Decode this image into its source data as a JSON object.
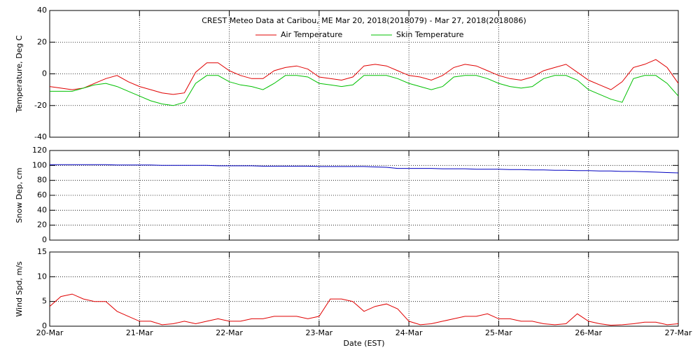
{
  "chart_data": [
    {
      "type": "line",
      "title": "CREST Meteo Data at Caribou, ME   Mar 20, 2018(2018079) - Mar 27, 2018(2018086)",
      "y_label": "Temperature, Deg C",
      "x": [
        0,
        0.125,
        0.25,
        0.375,
        0.5,
        0.625,
        0.75,
        0.875,
        1,
        1.125,
        1.25,
        1.375,
        1.5,
        1.625,
        1.75,
        1.875,
        2,
        2.125,
        2.25,
        2.375,
        2.5,
        2.625,
        2.75,
        2.875,
        3,
        3.125,
        3.25,
        3.375,
        3.5,
        3.625,
        3.75,
        3.875,
        4,
        4.125,
        4.25,
        4.375,
        4.5,
        4.625,
        4.75,
        4.875,
        5,
        5.125,
        5.25,
        5.375,
        5.5,
        5.625,
        5.75,
        5.875,
        6,
        6.125,
        6.25,
        6.375,
        6.5,
        6.625,
        6.75,
        6.875,
        7
      ],
      "series": [
        {
          "name": "Air Temperature",
          "color": "#e00000",
          "values": [
            -8,
            -9,
            -10,
            -9,
            -6,
            -3,
            -1,
            -5,
            -8,
            -10,
            -12,
            -13,
            -12,
            1,
            7,
            7,
            2,
            -1,
            -3,
            -3,
            2,
            4,
            5,
            3,
            -2,
            -3,
            -4,
            -2,
            5,
            6,
            5,
            2,
            -1,
            -2,
            -4,
            -1,
            4,
            6,
            5,
            2,
            -1,
            -3,
            -4,
            -2,
            2,
            4,
            6,
            1,
            -4,
            -7,
            -10,
            -5,
            4,
            6,
            9,
            4,
            -6
          ]
        },
        {
          "name": "Skin Temperature",
          "color": "#00c000",
          "values": [
            -11,
            -11,
            -11,
            -9,
            -7,
            -6,
            -8,
            -11,
            -14,
            -17,
            -19,
            -20,
            -18,
            -6,
            -1,
            -1,
            -5,
            -7,
            -8,
            -10,
            -6,
            -1,
            -1,
            -2,
            -6,
            -7,
            -8,
            -7,
            -1,
            -1,
            -1,
            -3,
            -6,
            -8,
            -10,
            -8,
            -2,
            -1,
            -1,
            -3,
            -6,
            -8,
            -9,
            -8,
            -3,
            -1,
            -1,
            -4,
            -10,
            -13,
            -16,
            -18,
            -3,
            -1,
            -1,
            -6,
            -14
          ]
        }
      ],
      "xlim": [
        0,
        7
      ],
      "ylim": [
        -40,
        40
      ],
      "yticks": [
        -40,
        -20,
        0,
        20,
        40
      ],
      "grid": true
    },
    {
      "type": "line",
      "y_label": "Snow Dep, cm",
      "x": [
        0,
        0.125,
        0.25,
        0.375,
        0.5,
        0.625,
        0.75,
        0.875,
        1,
        1.125,
        1.25,
        1.375,
        1.5,
        1.625,
        1.75,
        1.875,
        2,
        2.125,
        2.25,
        2.375,
        2.5,
        2.625,
        2.75,
        2.875,
        3,
        3.125,
        3.25,
        3.375,
        3.5,
        3.625,
        3.75,
        3.875,
        4,
        4.125,
        4.25,
        4.375,
        4.5,
        4.625,
        4.75,
        4.875,
        5,
        5.125,
        5.25,
        5.375,
        5.5,
        5.625,
        5.75,
        5.875,
        6,
        6.125,
        6.25,
        6.375,
        6.5,
        6.625,
        6.75,
        6.875,
        7
      ],
      "series": [
        {
          "color": "#0000c0",
          "values": [
            101,
            101,
            101,
            101,
            101,
            101,
            100.5,
            100.5,
            100.5,
            100.5,
            100,
            100,
            100,
            100,
            100,
            99.5,
            99.5,
            99.5,
            99.5,
            99,
            99,
            99,
            99,
            99,
            98.5,
            98.5,
            98.5,
            98.5,
            98.5,
            98,
            97.5,
            96,
            96,
            96,
            96,
            95.5,
            95.5,
            95.5,
            95,
            95,
            95,
            94.5,
            94.5,
            94,
            94,
            93.5,
            93.5,
            93,
            93,
            92.5,
            92.5,
            92,
            92,
            91.5,
            91,
            90.5,
            90
          ]
        }
      ],
      "xlim": [
        0,
        7
      ],
      "ylim": [
        0,
        120
      ],
      "yticks": [
        0,
        20,
        40,
        60,
        80,
        100,
        120
      ],
      "grid": true
    },
    {
      "type": "line",
      "y_label": "Wind Spd, m/s",
      "x_label": "Date (EST)",
      "x": [
        0,
        0.125,
        0.25,
        0.375,
        0.5,
        0.625,
        0.75,
        0.875,
        1,
        1.125,
        1.25,
        1.375,
        1.5,
        1.625,
        1.75,
        1.875,
        2,
        2.125,
        2.25,
        2.375,
        2.5,
        2.625,
        2.75,
        2.875,
        3,
        3.125,
        3.25,
        3.375,
        3.5,
        3.625,
        3.75,
        3.875,
        4,
        4.125,
        4.25,
        4.375,
        4.5,
        4.625,
        4.75,
        4.875,
        5,
        5.125,
        5.25,
        5.375,
        5.5,
        5.625,
        5.75,
        5.875,
        6,
        6.125,
        6.25,
        6.375,
        6.5,
        6.625,
        6.75,
        6.875,
        7
      ],
      "series": [
        {
          "color": "#e00000",
          "values": [
            4,
            6,
            6.5,
            5.5,
            5,
            5,
            3,
            2,
            1,
            1,
            0.3,
            0.5,
            1,
            0.5,
            1,
            1.5,
            1,
            1,
            1.5,
            1.5,
            2,
            2,
            2,
            1.5,
            2,
            5.5,
            5.5,
            5,
            3,
            4,
            4.5,
            3.5,
            1,
            0.3,
            0.5,
            1,
            1.5,
            2,
            2,
            2.5,
            1.5,
            1.5,
            1,
            1,
            0.5,
            0.3,
            0.5,
            2.5,
            1,
            0.5,
            0.2,
            0.3,
            0.5,
            0.8,
            0.8,
            0.3,
            0.5
          ]
        }
      ],
      "xlim": [
        0,
        7
      ],
      "xticks": [
        {
          "value": 0,
          "label": "20-Mar"
        },
        {
          "value": 1,
          "label": "21-Mar"
        },
        {
          "value": 2,
          "label": "22-Mar"
        },
        {
          "value": 3,
          "label": "23-Mar"
        },
        {
          "value": 4,
          "label": "24-Mar"
        },
        {
          "value": 5,
          "label": "25-Mar"
        },
        {
          "value": 6,
          "label": "26-Mar"
        },
        {
          "value": 7,
          "label": "27-Mar"
        }
      ],
      "ylim": [
        0,
        15
      ],
      "yticks": [
        0,
        5,
        10,
        15
      ],
      "grid": true
    }
  ]
}
